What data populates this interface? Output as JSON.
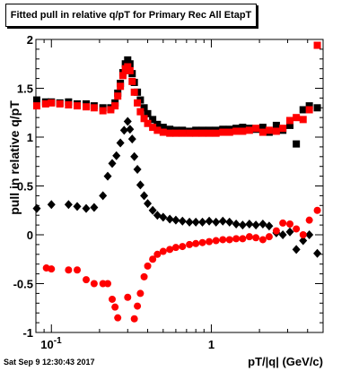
{
  "title": "Fitted pull in relative q/pT for Primary Rec All EtapT",
  "footer": "Sat Sep  9 12:30:43 2017",
  "chart_data": {
    "type": "scatter",
    "title": "Fitted pull in relative q/pT for Primary Rec All EtapT",
    "xlabel": "pT/|q| (GeV/c)",
    "ylabel": "pull in relative q/pT",
    "xscale": "log",
    "xlim": [
      0.08,
      5.0
    ],
    "ylim": [
      -1,
      2
    ],
    "x_tick_labels": [
      "10^-1",
      "1"
    ],
    "y_tick_labels": [
      "-1",
      "-0.5",
      "0",
      "0.5",
      "1",
      "1.5",
      "2"
    ],
    "grid": false,
    "series": [
      {
        "marker": "square",
        "color": "#000000",
        "role": "width",
        "points": [
          [
            0.081,
            1.38
          ],
          [
            0.092,
            1.36
          ],
          [
            0.1,
            1.36
          ],
          [
            0.113,
            1.35
          ],
          [
            0.128,
            1.36
          ],
          [
            0.145,
            1.34
          ],
          [
            0.165,
            1.34
          ],
          [
            0.185,
            1.32
          ],
          [
            0.21,
            1.3
          ],
          [
            0.235,
            1.3
          ],
          [
            0.25,
            1.35
          ],
          [
            0.26,
            1.45
          ],
          [
            0.27,
            1.55
          ],
          [
            0.28,
            1.66
          ],
          [
            0.29,
            1.75
          ],
          [
            0.3,
            1.79
          ],
          [
            0.31,
            1.75
          ],
          [
            0.32,
            1.65
          ],
          [
            0.33,
            1.56
          ],
          [
            0.345,
            1.46
          ],
          [
            0.36,
            1.38
          ],
          [
            0.38,
            1.3
          ],
          [
            0.4,
            1.24
          ],
          [
            0.43,
            1.18
          ],
          [
            0.46,
            1.13
          ],
          [
            0.5,
            1.1
          ],
          [
            0.55,
            1.08
          ],
          [
            0.6,
            1.07
          ],
          [
            0.66,
            1.07
          ],
          [
            0.73,
            1.06
          ],
          [
            0.8,
            1.07
          ],
          [
            0.88,
            1.07
          ],
          [
            0.97,
            1.07
          ],
          [
            1.07,
            1.07
          ],
          [
            1.18,
            1.08
          ],
          [
            1.3,
            1.08
          ],
          [
            1.43,
            1.09
          ],
          [
            1.57,
            1.1
          ],
          [
            1.73,
            1.09
          ],
          [
            1.9,
            1.08
          ],
          [
            2.1,
            1.1
          ],
          [
            2.3,
            1.05
          ],
          [
            2.55,
            1.12
          ],
          [
            2.8,
            1.07
          ],
          [
            3.1,
            1.12
          ],
          [
            3.4,
            0.93
          ],
          [
            3.75,
            1.28
          ],
          [
            4.1,
            1.32
          ],
          [
            4.6,
            1.3
          ]
        ]
      },
      {
        "marker": "square",
        "color": "#ff0000",
        "role": "width",
        "points": [
          [
            0.081,
            1.32
          ],
          [
            0.092,
            1.34
          ],
          [
            0.1,
            1.35
          ],
          [
            0.113,
            1.34
          ],
          [
            0.128,
            1.33
          ],
          [
            0.145,
            1.32
          ],
          [
            0.165,
            1.31
          ],
          [
            0.185,
            1.3
          ],
          [
            0.21,
            1.27
          ],
          [
            0.235,
            1.28
          ],
          [
            0.25,
            1.32
          ],
          [
            0.26,
            1.42
          ],
          [
            0.27,
            1.52
          ],
          [
            0.28,
            1.63
          ],
          [
            0.29,
            1.7
          ],
          [
            0.3,
            1.72
          ],
          [
            0.31,
            1.68
          ],
          [
            0.32,
            1.57
          ],
          [
            0.33,
            1.46
          ],
          [
            0.345,
            1.35
          ],
          [
            0.36,
            1.26
          ],
          [
            0.38,
            1.19
          ],
          [
            0.4,
            1.14
          ],
          [
            0.43,
            1.1
          ],
          [
            0.46,
            1.07
          ],
          [
            0.5,
            1.05
          ],
          [
            0.55,
            1.04
          ],
          [
            0.6,
            1.04
          ],
          [
            0.66,
            1.04
          ],
          [
            0.73,
            1.04
          ],
          [
            0.8,
            1.04
          ],
          [
            0.88,
            1.04
          ],
          [
            0.97,
            1.04
          ],
          [
            1.07,
            1.04
          ],
          [
            1.18,
            1.05
          ],
          [
            1.3,
            1.05
          ],
          [
            1.43,
            1.06
          ],
          [
            1.57,
            1.06
          ],
          [
            1.73,
            1.07
          ],
          [
            1.9,
            1.09
          ],
          [
            2.1,
            1.05
          ],
          [
            2.3,
            1.07
          ],
          [
            2.55,
            1.06
          ],
          [
            2.8,
            1.09
          ],
          [
            3.1,
            1.17
          ],
          [
            3.4,
            1.2
          ],
          [
            3.75,
            1.18
          ],
          [
            4.1,
            1.28
          ],
          [
            4.6,
            1.94
          ]
        ]
      },
      {
        "marker": "diamond",
        "color": "#000000",
        "role": "mean",
        "points": [
          [
            0.081,
            0.27
          ],
          [
            0.1,
            0.31
          ],
          [
            0.128,
            0.31
          ],
          [
            0.145,
            0.29
          ],
          [
            0.165,
            0.27
          ],
          [
            0.185,
            0.28
          ],
          [
            0.21,
            0.4
          ],
          [
            0.225,
            0.6
          ],
          [
            0.24,
            0.73
          ],
          [
            0.255,
            0.81
          ],
          [
            0.27,
            0.94
          ],
          [
            0.285,
            1.07
          ],
          [
            0.3,
            1.16
          ],
          [
            0.31,
            1.08
          ],
          [
            0.32,
            0.98
          ],
          [
            0.33,
            0.8
          ],
          [
            0.345,
            0.67
          ],
          [
            0.36,
            0.51
          ],
          [
            0.38,
            0.4
          ],
          [
            0.4,
            0.32
          ],
          [
            0.43,
            0.25
          ],
          [
            0.46,
            0.2
          ],
          [
            0.5,
            0.18
          ],
          [
            0.55,
            0.16
          ],
          [
            0.6,
            0.15
          ],
          [
            0.66,
            0.14
          ],
          [
            0.73,
            0.13
          ],
          [
            0.8,
            0.13
          ],
          [
            0.88,
            0.13
          ],
          [
            0.97,
            0.14
          ],
          [
            1.07,
            0.13
          ],
          [
            1.18,
            0.14
          ],
          [
            1.3,
            0.13
          ],
          [
            1.43,
            0.11
          ],
          [
            1.57,
            0.1
          ],
          [
            1.73,
            0.11
          ],
          [
            1.9,
            0.1
          ],
          [
            2.1,
            0.11
          ],
          [
            2.3,
            0.09
          ],
          [
            2.55,
            0.02
          ],
          [
            2.8,
            0.0
          ],
          [
            3.1,
            0.03
          ],
          [
            3.4,
            -0.15
          ],
          [
            3.75,
            -0.06
          ],
          [
            4.1,
            0.0
          ],
          [
            4.6,
            -0.19
          ]
        ]
      },
      {
        "marker": "circle",
        "color": "#ff0000",
        "role": "mean",
        "points": [
          [
            0.093,
            -0.34
          ],
          [
            0.1,
            -0.35
          ],
          [
            0.128,
            -0.36
          ],
          [
            0.145,
            -0.36
          ],
          [
            0.165,
            -0.46
          ],
          [
            0.185,
            -0.5
          ],
          [
            0.21,
            -0.5
          ],
          [
            0.225,
            -0.5
          ],
          [
            0.24,
            -0.66
          ],
          [
            0.25,
            -0.74
          ],
          [
            0.26,
            -0.85
          ],
          [
            0.3,
            -0.64
          ],
          [
            0.33,
            -0.86
          ],
          [
            0.345,
            -0.73
          ],
          [
            0.36,
            -0.6
          ],
          [
            0.38,
            -0.43
          ],
          [
            0.4,
            -0.32
          ],
          [
            0.43,
            -0.25
          ],
          [
            0.46,
            -0.2
          ],
          [
            0.5,
            -0.17
          ],
          [
            0.55,
            -0.15
          ],
          [
            0.6,
            -0.13
          ],
          [
            0.66,
            -0.12
          ],
          [
            0.73,
            -0.1
          ],
          [
            0.8,
            -0.09
          ],
          [
            0.88,
            -0.08
          ],
          [
            0.97,
            -0.07
          ],
          [
            1.07,
            -0.06
          ],
          [
            1.18,
            -0.05
          ],
          [
            1.3,
            -0.05
          ],
          [
            1.43,
            -0.04
          ],
          [
            1.57,
            -0.04
          ],
          [
            1.73,
            -0.02
          ],
          [
            1.9,
            -0.03
          ],
          [
            2.1,
            -0.05
          ],
          [
            2.3,
            -0.02
          ],
          [
            2.55,
            0.04
          ],
          [
            2.8,
            0.12
          ],
          [
            3.1,
            0.11
          ],
          [
            3.4,
            0.06
          ],
          [
            3.75,
            0.0
          ],
          [
            4.1,
            0.15
          ],
          [
            4.6,
            0.25
          ]
        ]
      }
    ]
  }
}
